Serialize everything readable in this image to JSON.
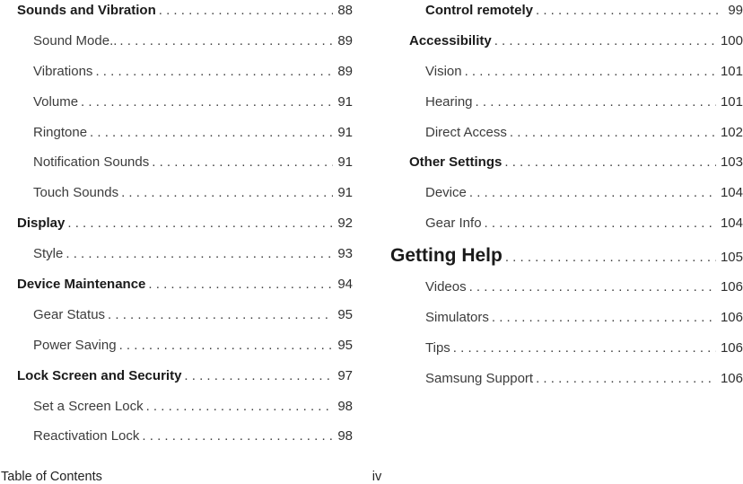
{
  "toc": {
    "columns": [
      {
        "items": [
          {
            "label": "Sounds and Vibration",
            "page": "88",
            "level": "section",
            "bold": true
          },
          {
            "label": "Sound Mode..",
            "page": "89",
            "level": "item",
            "bold": false
          },
          {
            "label": "Vibrations",
            "page": "89",
            "level": "item",
            "bold": false
          },
          {
            "label": "Volume",
            "page": "91",
            "level": "item",
            "bold": false
          },
          {
            "label": "Ringtone",
            "page": "91",
            "level": "item",
            "bold": false
          },
          {
            "label": "Notification Sounds",
            "page": "91",
            "level": "item",
            "bold": false
          },
          {
            "label": "Touch Sounds",
            "page": "91",
            "level": "item",
            "bold": false
          },
          {
            "label": "Display",
            "page": "92",
            "level": "section",
            "bold": true
          },
          {
            "label": "Style",
            "page": "93",
            "level": "item",
            "bold": false
          },
          {
            "label": "Device Maintenance",
            "page": "94",
            "level": "section",
            "bold": true
          },
          {
            "label": "Gear Status",
            "page": "95",
            "level": "item",
            "bold": false
          },
          {
            "label": "Power Saving",
            "page": "95",
            "level": "item",
            "bold": false
          },
          {
            "label": "Lock Screen and Security",
            "page": "97",
            "level": "section",
            "bold": true
          },
          {
            "label": "Set a Screen Lock",
            "page": "98",
            "level": "item",
            "bold": false
          },
          {
            "label": "Reactivation Lock",
            "page": "98",
            "level": "item",
            "bold": false
          }
        ]
      },
      {
        "items": [
          {
            "label": "Control remotely",
            "page": "99",
            "level": "item",
            "bold": true
          },
          {
            "label": "Accessibility",
            "page": "100",
            "level": "section",
            "bold": true
          },
          {
            "label": "Vision",
            "page": "101",
            "level": "item",
            "bold": false
          },
          {
            "label": "Hearing",
            "page": "101",
            "level": "item",
            "bold": false
          },
          {
            "label": "Direct Access",
            "page": "102",
            "level": "item",
            "bold": false
          },
          {
            "label": "Other Settings",
            "page": "103",
            "level": "section",
            "bold": true
          },
          {
            "label": "Device",
            "page": "104",
            "level": "item",
            "bold": false
          },
          {
            "label": "Gear Info",
            "page": "104",
            "level": "item",
            "bold": false
          },
          {
            "label": "Getting Help",
            "page": "105",
            "level": "chapter",
            "bold": true
          },
          {
            "label": "Videos",
            "page": "106",
            "level": "item",
            "bold": false
          },
          {
            "label": "Simulators",
            "page": "106",
            "level": "item",
            "bold": false
          },
          {
            "label": "Tips",
            "page": "106",
            "level": "item",
            "bold": false
          },
          {
            "label": "Samsung Support",
            "page": "106",
            "level": "item",
            "bold": false
          }
        ]
      }
    ]
  },
  "footer": {
    "section_label": "Table of Contents",
    "page_number": "iv"
  },
  "colors": {
    "background": "#ffffff",
    "heading_text": "#1a1a1a",
    "body_text": "#3c3c3c",
    "leader_dots": "#3f3f3f",
    "footer_text": "#222222"
  }
}
